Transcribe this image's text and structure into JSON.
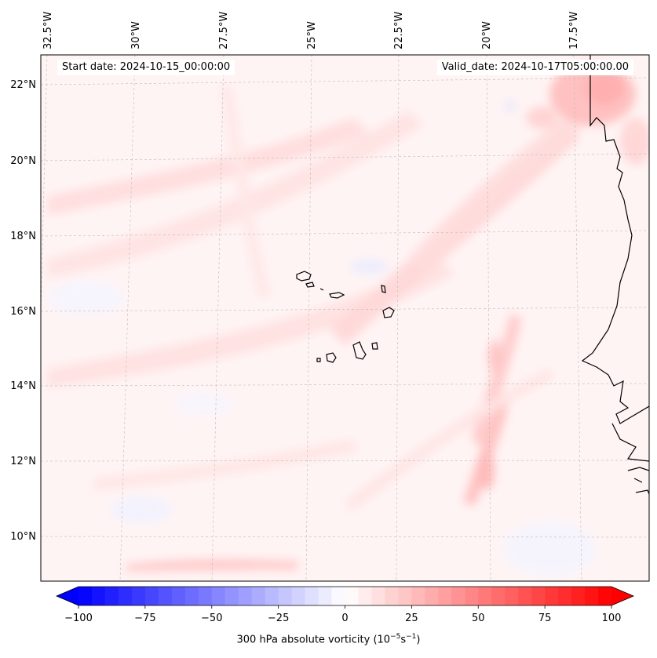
{
  "header": {
    "start_date": "Start date: 2024-10-15_00:00:00",
    "valid_date": "Valid_date: 2024-10-17T05:00:00.00"
  },
  "axes": {
    "lon_labels": [
      "32.5°W",
      "30°W",
      "27.5°W",
      "25°W",
      "22.5°W",
      "20°W",
      "17.5°W"
    ],
    "lat_labels": [
      "22°N",
      "20°N",
      "18°N",
      "16°N",
      "14°N",
      "12°N",
      "10°N"
    ]
  },
  "colorbar": {
    "label_main": "300 hPa absolute vorticity (10",
    "label_exp1": "−5",
    "label_mid": "s",
    "label_exp2": "−1",
    "label_end": ")",
    "min": -100,
    "max": 100,
    "ticks": [
      "−100",
      "−75",
      "−50",
      "−25",
      "0",
      "25",
      "50",
      "75",
      "100"
    ],
    "colors": {
      "low": "#0000ff",
      "mid": "#ffffff",
      "high": "#ff0000"
    }
  },
  "map": {
    "field_background": "#fff5f5",
    "coastline_color": "#000000"
  }
}
